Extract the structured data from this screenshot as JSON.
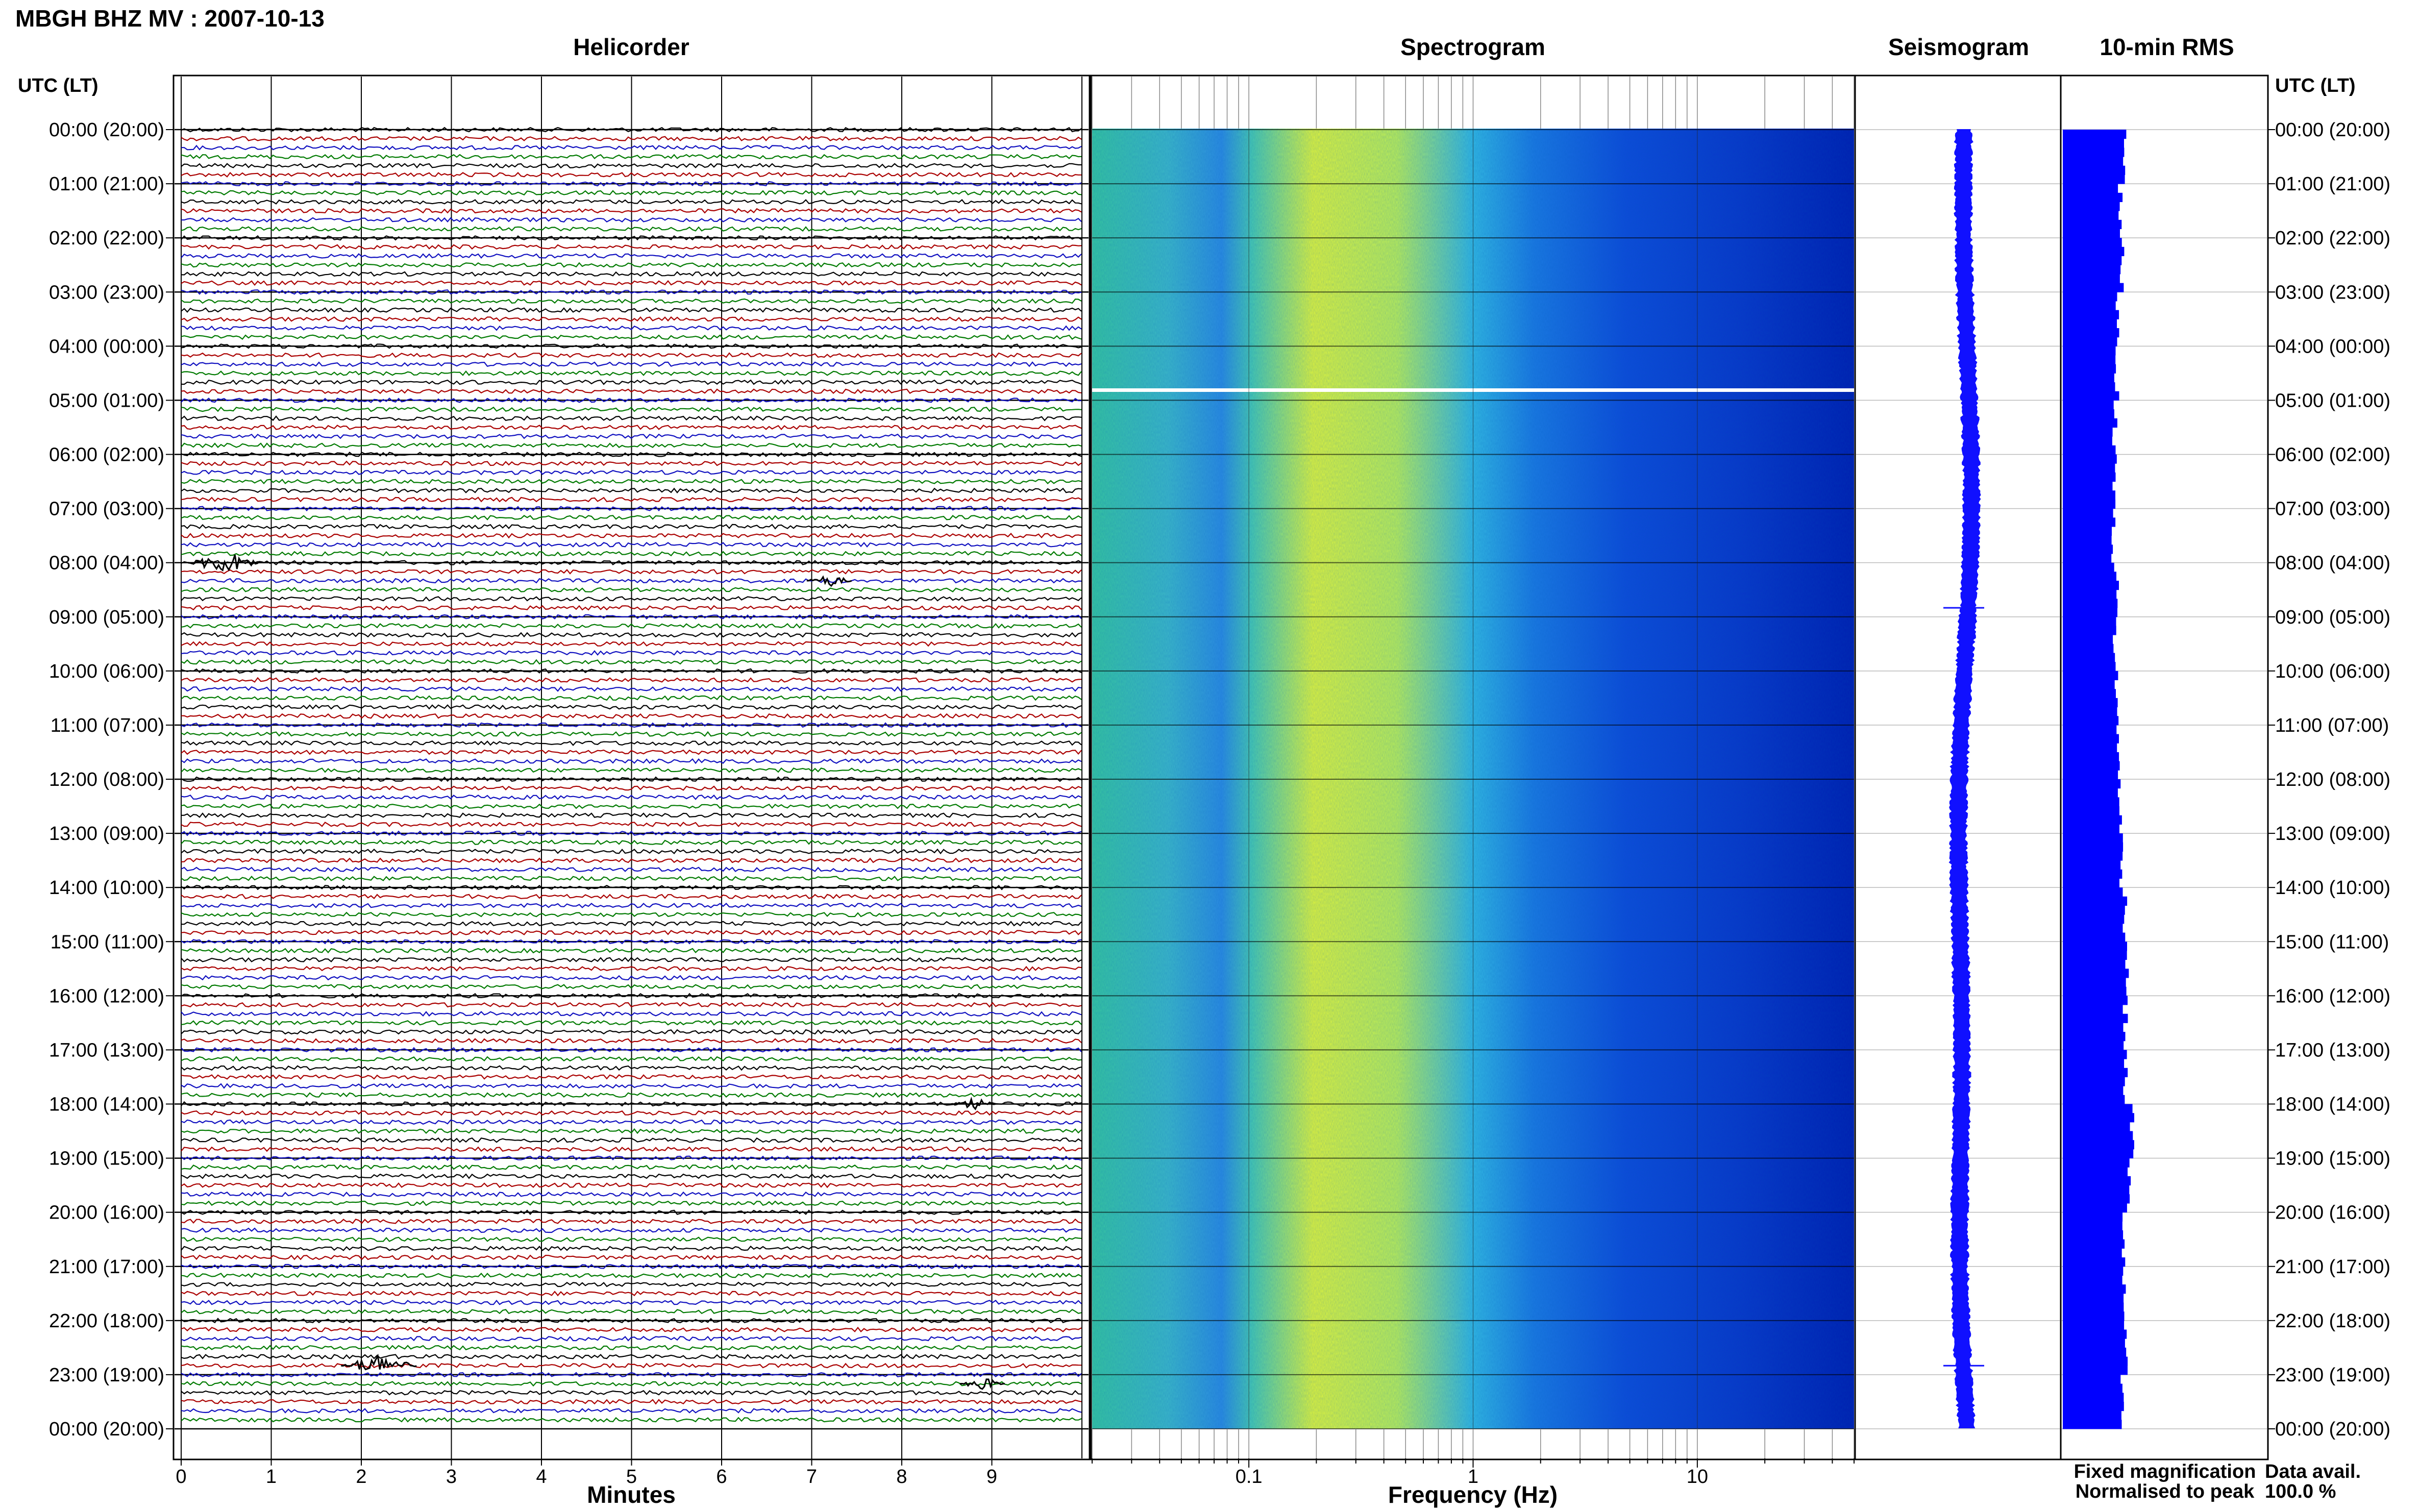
{
  "station_title": "MBGH BHZ MV : 2007-10-13",
  "panels": {
    "helicorder": "Helicorder",
    "spectrogram": "Spectrogram",
    "seismogram": "Seismogram",
    "rms": "10-min RMS"
  },
  "time_header_left": "UTC (LT)",
  "time_header_right": "UTC (LT)",
  "time_labels": [
    "00:00 (20:00)",
    "01:00 (21:00)",
    "02:00 (22:00)",
    "03:00 (23:00)",
    "04:00 (00:00)",
    "05:00 (01:00)",
    "06:00 (02:00)",
    "07:00 (03:00)",
    "08:00 (04:00)",
    "09:00 (05:00)",
    "10:00 (06:00)",
    "11:00 (07:00)",
    "12:00 (08:00)",
    "13:00 (09:00)",
    "14:00 (10:00)",
    "15:00 (11:00)",
    "16:00 (12:00)",
    "17:00 (13:00)",
    "18:00 (14:00)",
    "19:00 (15:00)",
    "20:00 (16:00)",
    "21:00 (17:00)",
    "22:00 (18:00)",
    "23:00 (19:00)",
    "00:00 (20:00)"
  ],
  "x_axes": {
    "minutes_label": "Minutes",
    "minutes_ticks": [
      "0",
      "1",
      "2",
      "3",
      "4",
      "5",
      "6",
      "7",
      "8",
      "9"
    ],
    "frequency_label": "Frequency (Hz)",
    "frequency_ticks": [
      "0.1",
      "1",
      "10"
    ]
  },
  "legend": {
    "fixed": "Fixed magnification",
    "normalised": "Normalised to peak",
    "fixed_color": "#1010e8",
    "normalised_color": "#e81010"
  },
  "data_availability": {
    "label": "Data avail.",
    "value": "100.0 %"
  },
  "colors": {
    "trace_cycle": [
      "#000000",
      "#aa0000",
      "#1010c0",
      "#007a00"
    ],
    "spectro_low": "#30c0a8",
    "spectro_mid": "#d8f040",
    "spectro_high": "#0020c0",
    "rms_fill": "#0000ff",
    "seismogram": "#1010ff"
  },
  "chart_data": [
    {
      "type": "line",
      "title": "Helicorder",
      "xlabel": "Minutes",
      "x_ticks": [
        0,
        1,
        2,
        3,
        4,
        5,
        6,
        7,
        8,
        9
      ],
      "xlim": [
        0,
        10
      ],
      "rows": 144,
      "minutes_per_row": 10,
      "grid": true,
      "events": [
        {
          "time": "08:00",
          "minute": 0.5,
          "level": "moderate"
        },
        {
          "time": "08:20",
          "minute": 7.2,
          "level": "small"
        },
        {
          "time": "18:00",
          "minute": 8.8,
          "level": "small"
        },
        {
          "time": "22:50",
          "minute": 2.2,
          "level": "moderate"
        },
        {
          "time": "23:10",
          "minute": 8.9,
          "level": "small"
        }
      ]
    },
    {
      "type": "heatmap",
      "title": "Spectrogram",
      "xlabel": "Frequency (Hz)",
      "x_scale": "log",
      "xlim": [
        0.02,
        50
      ],
      "x_ticks": [
        0.1,
        1,
        10
      ],
      "rows": 144,
      "peak_band_hz": [
        0.2,
        0.6
      ],
      "data_gap_time": "04:50"
    },
    {
      "type": "line",
      "title": "Seismogram",
      "rows": 144,
      "events": [
        "08:50",
        "22:50"
      ]
    },
    {
      "type": "bar",
      "title": "10-min RMS",
      "orientation": "horizontal",
      "interval_minutes": 10,
      "hourly_values_relative": [
        0.72,
        0.66,
        0.68,
        0.64,
        0.62,
        0.6,
        0.6,
        0.58,
        0.62,
        0.6,
        0.62,
        0.64,
        0.66,
        0.68,
        0.72,
        0.74,
        0.72,
        0.72,
        0.8,
        0.76,
        0.7,
        0.7,
        0.72,
        0.68
      ]
    }
  ]
}
